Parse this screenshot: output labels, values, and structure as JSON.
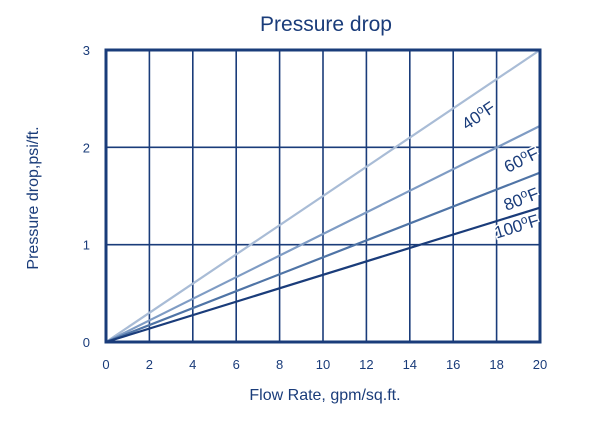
{
  "chart_data": {
    "type": "line",
    "title": "Pressure drop",
    "xlabel": "Flow Rate, gpm/sq.ft.",
    "ylabel": "Pressure drop,psi/ft.",
    "xlim": [
      0,
      20
    ],
    "ylim": [
      0,
      3
    ],
    "xticks": [
      "0",
      "2",
      "4",
      "6",
      "8",
      "10",
      "12",
      "14",
      "16",
      "18",
      "20"
    ],
    "yticks": [
      "0",
      "1",
      "2",
      "3"
    ],
    "grid": true,
    "series": [
      {
        "name": "40°F",
        "temp": "40",
        "unit": "F",
        "x": [
          0,
          20
        ],
        "y": [
          0,
          3.0
        ],
        "color": "#a9bcd6"
      },
      {
        "name": "60°F",
        "temp": "60",
        "unit": "F",
        "x": [
          0,
          20
        ],
        "y": [
          0,
          2.22
        ],
        "color": "#7f9cc4"
      },
      {
        "name": "80°F",
        "temp": "80",
        "unit": "F",
        "x": [
          0,
          20
        ],
        "y": [
          0,
          1.74
        ],
        "color": "#4f74a6"
      },
      {
        "name": "100°F",
        "temp": "100",
        "unit": "F",
        "x": [
          0,
          20
        ],
        "y": [
          0,
          1.38
        ],
        "color": "#1a3c7a"
      }
    ],
    "frame_color": "#1a3c7a"
  }
}
